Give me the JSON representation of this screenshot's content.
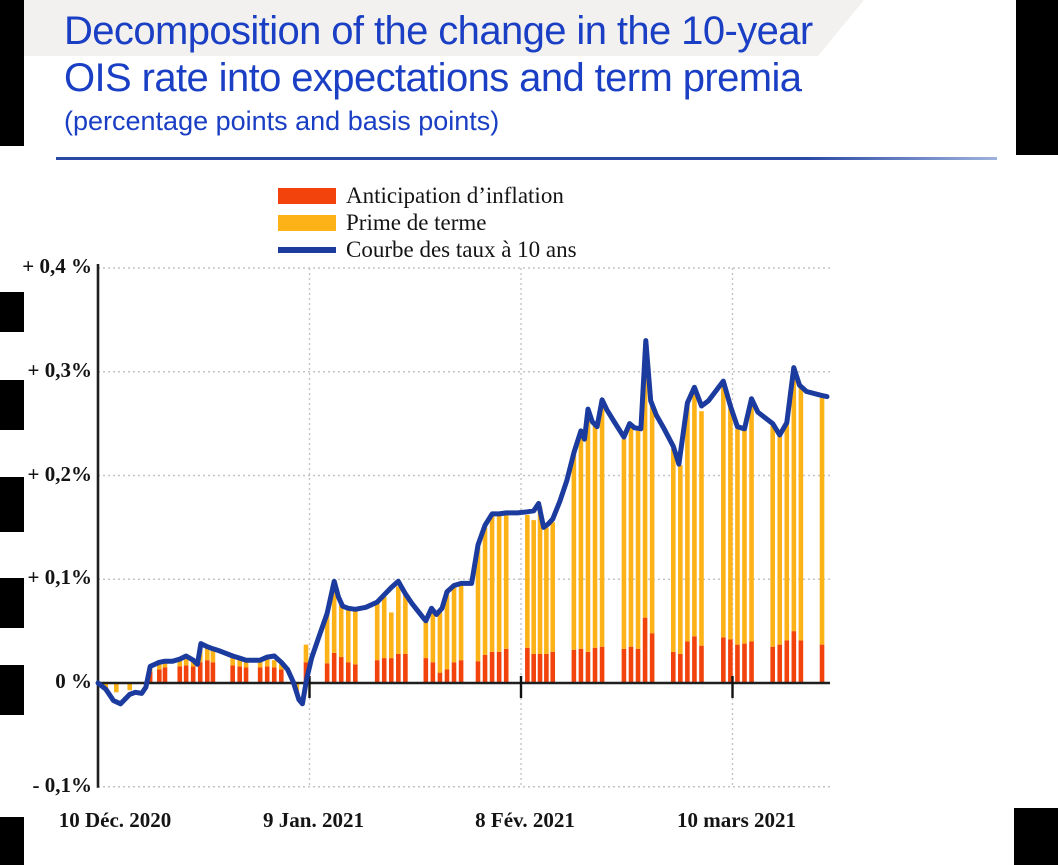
{
  "header": {
    "title_line1": "Decomposition of the change in the 10-year",
    "title_line2": "OIS rate into expectations and term premia",
    "subtitle": "(percentage points and basis points)",
    "title_color": "#1a3fc4"
  },
  "legend": {
    "items": [
      {
        "label": "Anticipation d’inflation",
        "color": "#f2430d",
        "type": "box"
      },
      {
        "label": "Prime de terme",
        "color": "#fdb318",
        "type": "box"
      },
      {
        "label": "Courbe des taux à 10 ans",
        "color": "#1b3b9e",
        "type": "line"
      }
    ]
  },
  "chart_data": {
    "type": "bar+line",
    "title": "Decomposition of the change in the 10-year OIS rate into expectations and term premia",
    "subtitle": "(percentage points and basis points)",
    "stacked_bar_series": [
      "Anticipation d’inflation",
      "Prime de terme"
    ],
    "line_series": "Courbe des taux à 10 ans",
    "ylim": [
      -0.1,
      0.4
    ],
    "grid": "dotted horizontal at each y tick, dotted vertical at each dated x tick",
    "legend_position": "top-center",
    "colors": {
      "anticipation": "#f2430d",
      "prime": "#fdb318",
      "courbe": "#1b3b9e",
      "axis": "#1f1f1f",
      "gridline": "#c4c4c4"
    },
    "y_ticks": [
      {
        "value": 0.4,
        "label": "+ 0,4 %"
      },
      {
        "value": 0.3,
        "label": "+ 0,3%"
      },
      {
        "value": 0.2,
        "label": "+ 0,2%"
      },
      {
        "value": 0.1,
        "label": "+ 0,1%"
      },
      {
        "value": 0.0,
        "label": "0 %"
      },
      {
        "value": -0.1,
        "label": "- 0,1%"
      }
    ],
    "x_ticks": [
      {
        "day": 0,
        "label": "10 Déc. 2020"
      },
      {
        "day": 30,
        "label": "9 Jan. 2021"
      },
      {
        "day": 60,
        "label": "8 Fév. 2021"
      },
      {
        "day": 90,
        "label": "10 mars 2021"
      }
    ],
    "bars_format": [
      "day_offset_from_10_dec_2020",
      "anticipation_inflation_red_pct",
      "prime_de_terme_yellow_pct"
    ],
    "bars": [
      [
        1.1,
        0,
        -0.005
      ],
      [
        2.6,
        0,
        -0.009
      ],
      [
        4.5,
        0,
        -0.007
      ],
      [
        7.4,
        0.011,
        0.004
      ],
      [
        8.7,
        0.013,
        0.005
      ],
      [
        9.5,
        0.015,
        0.005
      ],
      [
        11.6,
        0.016,
        0.006
      ],
      [
        12.5,
        0.017,
        0.006
      ],
      [
        13.5,
        0.016,
        0.005
      ],
      [
        14.5,
        0.02,
        0.015
      ],
      [
        15.5,
        0.022,
        0.014
      ],
      [
        16.3,
        0.02,
        0.013
      ],
      [
        19.1,
        0.017,
        0.008
      ],
      [
        20.1,
        0.016,
        0.007
      ],
      [
        21,
        0.015,
        0.006
      ],
      [
        23,
        0.015,
        0.007
      ],
      [
        24,
        0.016,
        0.008
      ],
      [
        25,
        0.015,
        0.007
      ],
      [
        26,
        0.013,
        0.005
      ],
      [
        28.2,
        0,
        -0.01
      ],
      [
        29.5,
        0.02,
        0.017
      ],
      [
        32.5,
        0.019,
        0.048
      ],
      [
        33.5,
        0.029,
        0.064
      ],
      [
        34.5,
        0.025,
        0.05
      ],
      [
        35.5,
        0.02,
        0.051
      ],
      [
        36.5,
        0.018,
        0.052
      ],
      [
        39.6,
        0.022,
        0.055
      ],
      [
        40.6,
        0.024,
        0.059
      ],
      [
        41.6,
        0.024,
        0.044
      ],
      [
        42.6,
        0.028,
        0.065
      ],
      [
        43.6,
        0.028,
        0.057
      ],
      [
        46.5,
        0.024,
        0.037
      ],
      [
        47.5,
        0.02,
        0.05
      ],
      [
        48.5,
        0.01,
        0.058
      ],
      [
        49.5,
        0.013,
        0.074
      ],
      [
        50.5,
        0.02,
        0.074
      ],
      [
        51.5,
        0.022,
        0.074
      ],
      [
        53.9,
        0.021,
        0.11
      ],
      [
        54.9,
        0.027,
        0.123
      ],
      [
        55.9,
        0.03,
        0.133
      ],
      [
        56.9,
        0.03,
        0.133
      ],
      [
        57.9,
        0.033,
        0.133
      ],
      [
        60.9,
        0.034,
        0.128
      ],
      [
        61.8,
        0.028,
        0.129
      ],
      [
        62.7,
        0.028,
        0.142
      ],
      [
        63.6,
        0.028,
        0.122
      ],
      [
        64.5,
        0.03,
        0.125
      ],
      [
        67.5,
        0.032,
        0.189
      ],
      [
        68.5,
        0.033,
        0.207
      ],
      [
        69.5,
        0.03,
        0.234
      ],
      [
        70.5,
        0.034,
        0.216
      ],
      [
        71.5,
        0.035,
        0.235
      ],
      [
        74.6,
        0.033,
        0.202
      ],
      [
        75.6,
        0.035,
        0.213
      ],
      [
        76.6,
        0.033,
        0.21
      ],
      [
        77.6,
        0.063,
        0.242
      ],
      [
        78.6,
        0.048,
        0.22
      ],
      [
        81.6,
        0.03,
        0.196
      ],
      [
        82.6,
        0.028,
        0.182
      ],
      [
        83.6,
        0.04,
        0.23
      ],
      [
        84.6,
        0.045,
        0.235
      ],
      [
        85.6,
        0.036,
        0.226
      ],
      [
        88.7,
        0.044,
        0.242
      ],
      [
        89.7,
        0.042,
        0.223
      ],
      [
        90.7,
        0.037,
        0.208
      ],
      [
        91.7,
        0.038,
        0.207
      ],
      [
        92.7,
        0.04,
        0.232
      ],
      [
        95.7,
        0.035,
        0.213
      ],
      [
        96.7,
        0.037,
        0.201
      ],
      [
        97.7,
        0.041,
        0.209
      ],
      [
        98.7,
        0.05,
        0.25
      ],
      [
        99.7,
        0.041,
        0.244
      ],
      [
        102.7,
        0.037,
        0.238
      ]
    ],
    "line_format": [
      "day_offset_from_10_dec_2020",
      "courbe_des_taux_pct"
    ],
    "line": [
      [
        0,
        0
      ],
      [
        1.1,
        -0.006
      ],
      [
        2.2,
        -0.017
      ],
      [
        3.2,
        -0.02
      ],
      [
        4.5,
        -0.011
      ],
      [
        5.3,
        -0.009
      ],
      [
        6.2,
        -0.01
      ],
      [
        6.8,
        -0.004
      ],
      [
        7.4,
        0.016
      ],
      [
        8.7,
        0.02
      ],
      [
        9.5,
        0.021
      ],
      [
        10.6,
        0.021
      ],
      [
        11.6,
        0.023
      ],
      [
        12.5,
        0.026
      ],
      [
        13.5,
        0.022
      ],
      [
        14.1,
        0.018
      ],
      [
        14.6,
        0.038
      ],
      [
        15.5,
        0.035
      ],
      [
        16.3,
        0.033
      ],
      [
        17.2,
        0.031
      ],
      [
        19.1,
        0.026
      ],
      [
        20.1,
        0.024
      ],
      [
        21,
        0.022
      ],
      [
        23,
        0.022
      ],
      [
        24,
        0.025
      ],
      [
        25,
        0.026
      ],
      [
        26,
        0.02
      ],
      [
        26.9,
        0.013
      ],
      [
        27.7,
        0.001
      ],
      [
        28.5,
        -0.016
      ],
      [
        29,
        -0.02
      ],
      [
        29.6,
        0.004
      ],
      [
        30.3,
        0.024
      ],
      [
        31.2,
        0.042
      ],
      [
        32.5,
        0.067
      ],
      [
        33.5,
        0.098
      ],
      [
        34.1,
        0.083
      ],
      [
        34.7,
        0.074
      ],
      [
        35.5,
        0.072
      ],
      [
        36.5,
        0.071
      ],
      [
        38,
        0.073
      ],
      [
        39.6,
        0.078
      ],
      [
        40.6,
        0.085
      ],
      [
        41.6,
        0.092
      ],
      [
        42.6,
        0.098
      ],
      [
        43.6,
        0.086
      ],
      [
        44.6,
        0.076
      ],
      [
        46,
        0.064
      ],
      [
        46.5,
        0.06
      ],
      [
        47.3,
        0.072
      ],
      [
        48,
        0.066
      ],
      [
        48.8,
        0.072
      ],
      [
        49.5,
        0.088
      ],
      [
        50.5,
        0.094
      ],
      [
        51.5,
        0.096
      ],
      [
        53,
        0.096
      ],
      [
        53.9,
        0.133
      ],
      [
        54.9,
        0.152
      ],
      [
        55.9,
        0.163
      ],
      [
        56.9,
        0.163
      ],
      [
        57.9,
        0.164
      ],
      [
        59.5,
        0.164
      ],
      [
        60.9,
        0.165
      ],
      [
        61.8,
        0.166
      ],
      [
        62.5,
        0.173
      ],
      [
        63.2,
        0.15
      ],
      [
        63.8,
        0.153
      ],
      [
        64.5,
        0.158
      ],
      [
        65.5,
        0.175
      ],
      [
        66.5,
        0.195
      ],
      [
        67.5,
        0.222
      ],
      [
        68.5,
        0.243
      ],
      [
        69,
        0.235
      ],
      [
        69.5,
        0.264
      ],
      [
        70.1,
        0.252
      ],
      [
        70.8,
        0.247
      ],
      [
        71.5,
        0.273
      ],
      [
        72.2,
        0.263
      ],
      [
        73.2,
        0.252
      ],
      [
        74.6,
        0.237
      ],
      [
        75.4,
        0.25
      ],
      [
        76.1,
        0.246
      ],
      [
        77,
        0.245
      ],
      [
        77.7,
        0.33
      ],
      [
        78.4,
        0.272
      ],
      [
        79.2,
        0.258
      ],
      [
        80.3,
        0.245
      ],
      [
        81.6,
        0.228
      ],
      [
        82.4,
        0.211
      ],
      [
        83.6,
        0.27
      ],
      [
        84.6,
        0.285
      ],
      [
        85.6,
        0.267
      ],
      [
        86.6,
        0.272
      ],
      [
        88.7,
        0.291
      ],
      [
        89.7,
        0.267
      ],
      [
        90.7,
        0.247
      ],
      [
        91.7,
        0.245
      ],
      [
        92.7,
        0.274
      ],
      [
        93.6,
        0.261
      ],
      [
        95.7,
        0.25
      ],
      [
        96.7,
        0.239
      ],
      [
        97.7,
        0.251
      ],
      [
        98.7,
        0.304
      ],
      [
        99.5,
        0.287
      ],
      [
        100.5,
        0.281
      ],
      [
        102.7,
        0.277
      ],
      [
        103.4,
        0.276
      ]
    ]
  }
}
